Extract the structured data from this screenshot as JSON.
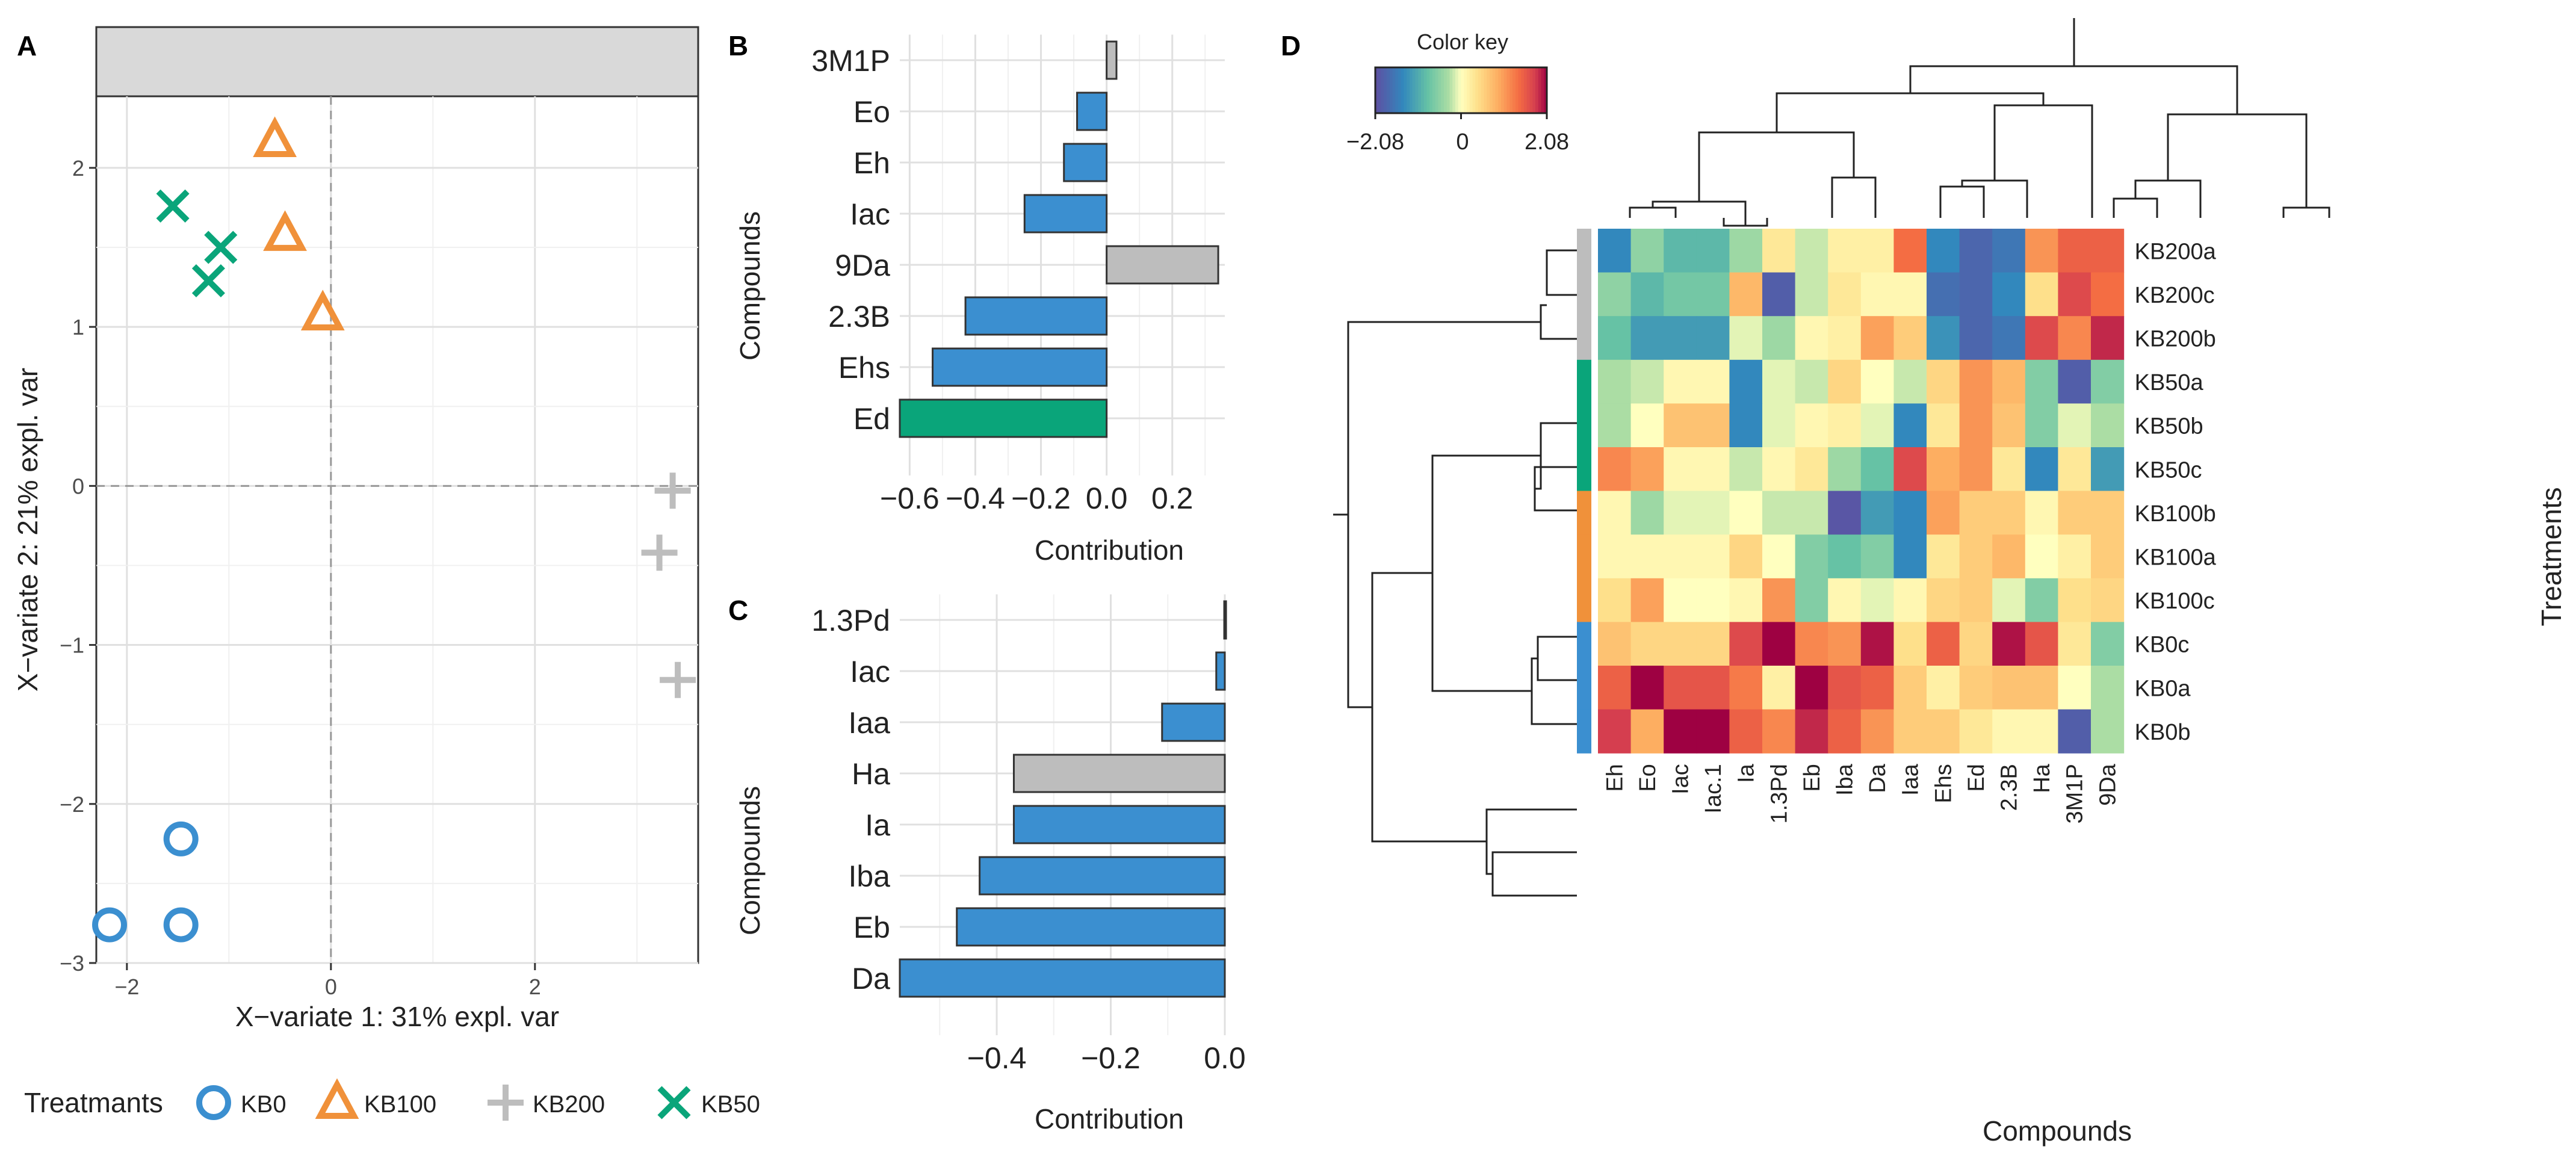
{
  "colors": {
    "KB0": "#3b8fd0",
    "KB100": "#f0913a",
    "KB200": "#bdbdbd",
    "KB50": "#0aa57a",
    "grid": "#e6e6e6",
    "strip": "#d9d9d9"
  },
  "panel_letters": [
    "A",
    "B",
    "C",
    "D"
  ],
  "chart_data": [
    {
      "id": "A",
      "type": "scatter",
      "xlabel": "X−variate 1: 31% expl. var",
      "ylabel": "X−variate 2: 21% expl. var",
      "xlim": [
        -2.3,
        3.6
      ],
      "ylim": [
        -3.0,
        2.45
      ],
      "xticks": [
        -2,
        0,
        2
      ],
      "xtick_labels": [
        "−2",
        "0",
        "2"
      ],
      "yticks": [
        -3,
        -2,
        -1,
        0,
        1,
        2
      ],
      "ytick_labels": [
        "−3",
        "−2",
        "−1",
        "0",
        "1",
        "2"
      ],
      "legend_title": "Treatmants",
      "legend_position": "bottom",
      "series": [
        {
          "name": "KB0",
          "marker": "circle",
          "points": [
            [
              -1.47,
              -2.22
            ],
            [
              -2.17,
              -2.76
            ],
            [
              -1.47,
              -2.76
            ]
          ]
        },
        {
          "name": "KB100",
          "marker": "triangle",
          "points": [
            [
              -0.55,
              2.17
            ],
            [
              -0.45,
              1.58
            ],
            [
              -0.08,
              1.08
            ]
          ]
        },
        {
          "name": "KB200",
          "marker": "plus",
          "points": [
            [
              3.35,
              -0.03
            ],
            [
              3.22,
              -0.42
            ],
            [
              3.4,
              -1.22
            ]
          ]
        },
        {
          "name": "KB50",
          "marker": "x",
          "points": [
            [
              -1.55,
              1.76
            ],
            [
              -1.08,
              1.5
            ],
            [
              -1.2,
              1.29
            ]
          ]
        }
      ]
    },
    {
      "id": "B",
      "type": "bar",
      "orientation": "horizontal",
      "xlabel": "Contribution",
      "ylabel": "Compounds",
      "xlim": [
        -0.63,
        0.36
      ],
      "xticks": [
        -0.6,
        -0.4,
        -0.2,
        0.0,
        0.2
      ],
      "xtick_labels": [
        "−0.6",
        "−0.4",
        "−0.2",
        "0.0",
        "0.2"
      ],
      "categories": [
        "3M1P",
        "Eo",
        "Eh",
        "Iac",
        "9Da",
        "2.3B",
        "Ehs",
        "Ed"
      ],
      "values": [
        0.03,
        -0.09,
        -0.13,
        -0.25,
        0.34,
        -0.43,
        -0.53,
        -0.63
      ],
      "groups": [
        "KB200",
        "KB0",
        "KB0",
        "KB0",
        "KB200",
        "KB0",
        "KB0",
        "KB50"
      ]
    },
    {
      "id": "C",
      "type": "bar",
      "orientation": "horizontal",
      "xlabel": "Contribution",
      "ylabel": "Compounds",
      "xlim": [
        -0.57,
        0.0
      ],
      "xticks": [
        -0.4,
        -0.2,
        0.0
      ],
      "xtick_labels": [
        "−0.4",
        "−0.2",
        "0.0"
      ],
      "categories": [
        "1.3Pd",
        "Iac",
        "Iaa",
        "Ha",
        "Ia",
        "Iba",
        "Eb",
        "Da"
      ],
      "values": [
        -0.001,
        -0.015,
        -0.11,
        -0.37,
        -0.37,
        -0.43,
        -0.47,
        -0.57
      ],
      "groups": [
        "KB0",
        "KB0",
        "KB0",
        "KB200",
        "KB0",
        "KB0",
        "KB0",
        "KB0"
      ]
    },
    {
      "id": "D",
      "type": "heatmap",
      "color_key_title": "Color key",
      "color_key_ticks": [
        "−2.08",
        "0",
        "2.08"
      ],
      "color_range": [
        -2.08,
        2.08
      ],
      "xlabel": "Compounds",
      "ylabel": "Treatments",
      "columns": [
        "Eh",
        "Eo",
        "Iac",
        "Iac.1",
        "Ia",
        "1.3Pd",
        "Eb",
        "Iba",
        "Da",
        "Iaa",
        "Ehs",
        "Ed",
        "2.3B",
        "Ha",
        "3M1P",
        "9Da"
      ],
      "rows": [
        "KB200a",
        "KB200c",
        "KB200b",
        "KB50a",
        "KB50b",
        "KB50c",
        "KB100b",
        "KB100a",
        "KB100c",
        "KB0c",
        "KB0a",
        "KB0b"
      ],
      "row_groups": [
        "KB200",
        "KB200",
        "KB200",
        "KB50",
        "KB50",
        "KB50",
        "KB100",
        "KB100",
        "KB100",
        "KB0",
        "KB0",
        "KB0"
      ],
      "values": [
        [
          -1.4,
          -0.5,
          -0.9,
          -0.9,
          -0.4,
          0.3,
          -0.2,
          0.2,
          0.2,
          1.4,
          -1.4,
          -1.8,
          -1.6,
          1.1,
          1.5,
          1.5
        ],
        [
          -0.5,
          -0.9,
          -0.7,
          -0.7,
          0.8,
          -1.9,
          -0.2,
          0.3,
          0.1,
          0.1,
          -1.7,
          -1.8,
          -1.4,
          0.4,
          1.7,
          1.4
        ],
        [
          -0.8,
          -1.2,
          -1.2,
          -1.2,
          -0.1,
          -0.4,
          0.1,
          0.2,
          1.0,
          0.6,
          -1.3,
          -1.8,
          -1.6,
          1.7,
          1.2,
          1.9
        ],
        [
          -0.3,
          -0.2,
          0.1,
          0.1,
          -1.4,
          -0.1,
          -0.2,
          0.5,
          0.0,
          -0.2,
          0.5,
          1.1,
          0.8,
          -0.6,
          -1.9,
          -0.6
        ],
        [
          -0.3,
          0.0,
          0.7,
          0.7,
          -1.4,
          -0.1,
          0.1,
          0.2,
          -0.1,
          -1.4,
          0.3,
          1.1,
          0.7,
          -0.6,
          -0.1,
          -0.3
        ],
        [
          1.2,
          1.0,
          0.1,
          0.1,
          -0.2,
          0.1,
          0.3,
          -0.4,
          -0.8,
          1.7,
          0.9,
          1.1,
          0.3,
          -1.4,
          0.3,
          -1.2
        ],
        [
          0.1,
          -0.4,
          -0.1,
          -0.1,
          0.0,
          -0.2,
          -0.2,
          -2.0,
          -1.2,
          -1.4,
          1.0,
          0.6,
          0.6,
          0.1,
          0.6,
          0.6
        ],
        [
          0.1,
          0.1,
          0.1,
          0.1,
          0.5,
          0.0,
          -0.6,
          -0.8,
          -0.6,
          -1.4,
          0.3,
          0.6,
          0.8,
          0.0,
          0.2,
          0.6
        ],
        [
          0.4,
          1.0,
          0.0,
          0.0,
          0.1,
          1.1,
          -0.6,
          0.1,
          -0.1,
          0.1,
          0.5,
          0.6,
          -0.1,
          -0.6,
          0.4,
          0.5
        ],
        [
          0.7,
          0.5,
          0.5,
          0.5,
          1.7,
          2.1,
          1.2,
          1.1,
          2.0,
          0.4,
          1.5,
          0.5,
          2.0,
          1.6,
          0.3,
          -0.6
        ],
        [
          1.5,
          2.1,
          1.6,
          1.6,
          1.3,
          0.2,
          2.1,
          1.6,
          1.5,
          0.6,
          0.2,
          0.6,
          0.7,
          0.7,
          0.0,
          -0.3
        ],
        [
          1.8,
          0.9,
          2.1,
          2.1,
          1.5,
          1.2,
          1.9,
          1.5,
          1.1,
          0.6,
          0.6,
          0.3,
          0.1,
          0.1,
          -1.9,
          -0.3
        ]
      ]
    }
  ]
}
